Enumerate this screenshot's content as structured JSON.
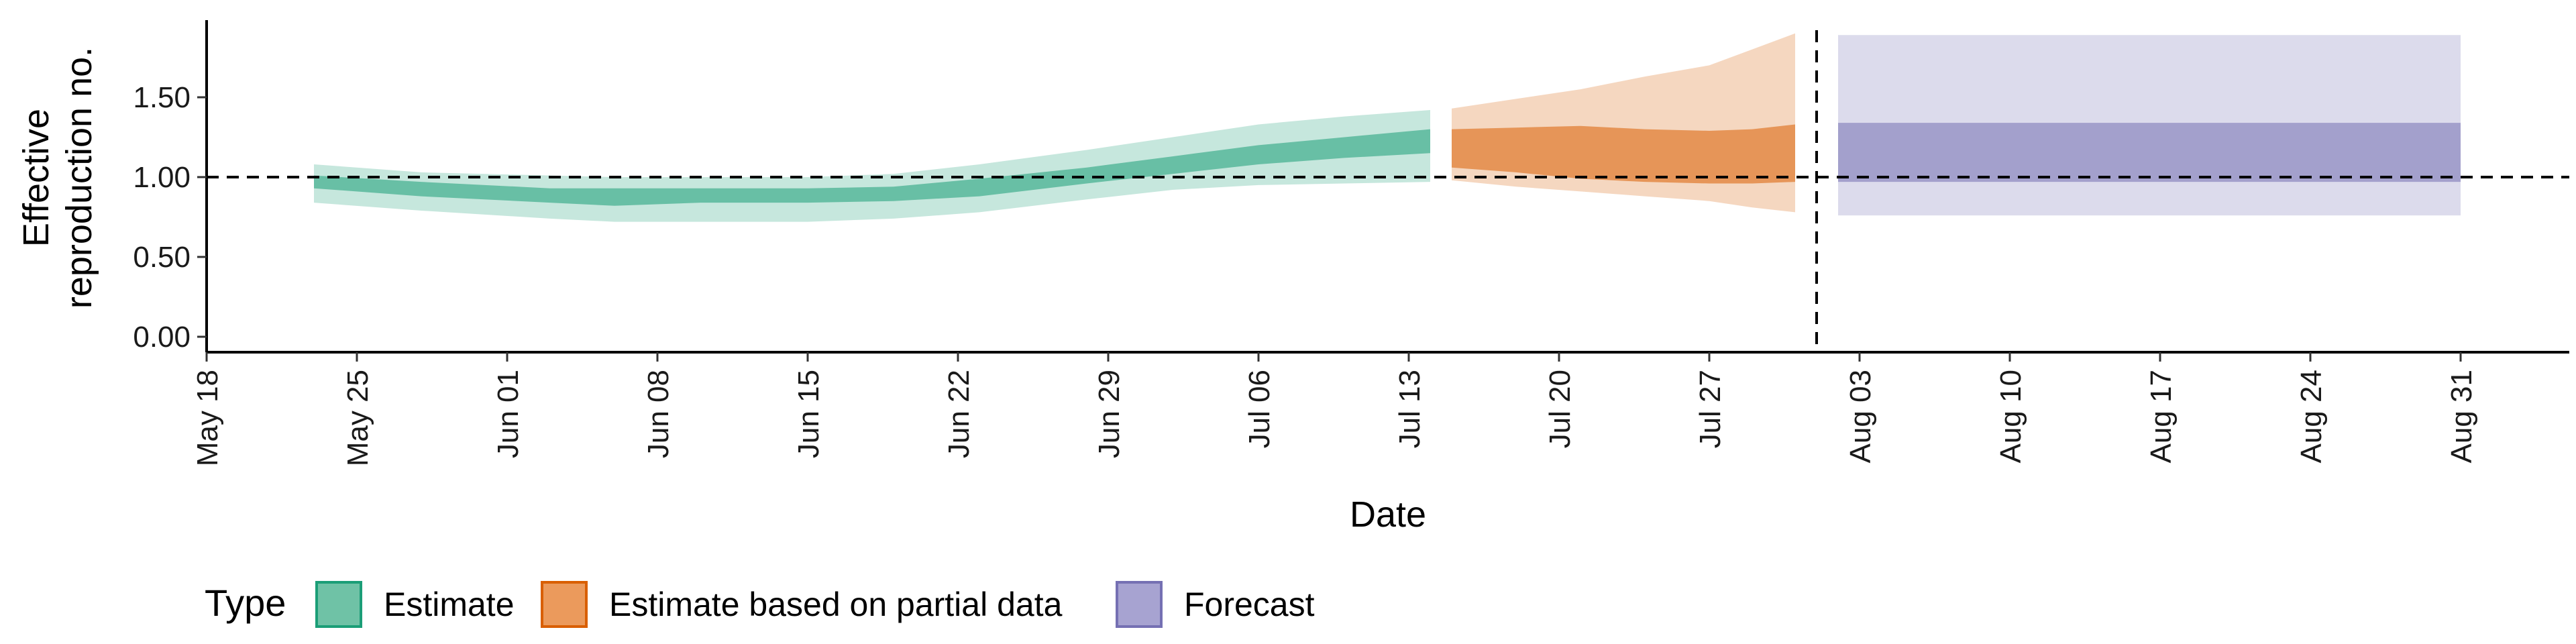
{
  "chart_data": {
    "type": "area",
    "xlabel": "Date",
    "ylabel_lines": [
      "Effective",
      "reproduction no."
    ],
    "x_ticks": [
      "May 18",
      "May 25",
      "Jun 01",
      "Jun 08",
      "Jun 15",
      "Jun 22",
      "Jun 29",
      "Jul 06",
      "Jul 13",
      "Jul 20",
      "Jul 27",
      "Aug 03",
      "Aug 10",
      "Aug 17",
      "Aug 24",
      "Aug 31"
    ],
    "y_ticks": [
      "0.00",
      "0.50",
      "1.00",
      "1.50"
    ],
    "ylim": [
      0,
      2.0
    ],
    "xlim": [
      "2020-05-18",
      "2020-09-05"
    ],
    "reference_line_y": 1.0,
    "reference_line_date": "2020-08-01",
    "series": [
      {
        "name": "Estimate",
        "color": "#1b9e77",
        "x": [
          "2020-05-23",
          "2020-05-28",
          "2020-06-03",
          "2020-06-06",
          "2020-06-10",
          "2020-06-15",
          "2020-06-19",
          "2020-06-23",
          "2020-06-28",
          "2020-07-02",
          "2020-07-06",
          "2020-07-10",
          "2020-07-14"
        ],
        "lower_90": [
          0.84,
          0.79,
          0.74,
          0.72,
          0.72,
          0.72,
          0.74,
          0.78,
          0.86,
          0.92,
          0.95,
          0.96,
          0.97
        ],
        "lower_50": [
          0.93,
          0.88,
          0.84,
          0.82,
          0.84,
          0.84,
          0.85,
          0.88,
          0.96,
          1.02,
          1.08,
          1.12,
          1.15
        ],
        "upper_50": [
          1.01,
          0.97,
          0.93,
          0.93,
          0.93,
          0.93,
          0.94,
          0.99,
          1.06,
          1.13,
          1.2,
          1.25,
          1.3
        ],
        "upper_90": [
          1.08,
          1.03,
          1.01,
          1.0,
          1.0,
          1.0,
          1.02,
          1.08,
          1.17,
          1.25,
          1.33,
          1.38,
          1.42
        ]
      },
      {
        "name": "Estimate based on partial data",
        "color": "#d95f02",
        "x": [
          "2020-07-15",
          "2020-07-18",
          "2020-07-21",
          "2020-07-24",
          "2020-07-27",
          "2020-07-29",
          "2020-07-31"
        ],
        "lower_90": [
          0.98,
          0.94,
          0.91,
          0.88,
          0.85,
          0.81,
          0.78
        ],
        "lower_50": [
          1.06,
          1.03,
          0.99,
          0.97,
          0.96,
          0.96,
          0.97
        ],
        "upper_50": [
          1.3,
          1.31,
          1.32,
          1.3,
          1.29,
          1.3,
          1.33
        ],
        "upper_90": [
          1.43,
          1.49,
          1.55,
          1.63,
          1.7,
          1.8,
          1.9
        ]
      },
      {
        "name": "Forecast",
        "color": "#7570b3",
        "x": [
          "2020-08-02",
          "2020-08-31"
        ],
        "lower_90": [
          0.76,
          0.76
        ],
        "lower_50": [
          0.97,
          0.97
        ],
        "upper_50": [
          1.34,
          1.34
        ],
        "upper_90": [
          1.89,
          1.89
        ]
      }
    ],
    "legend": {
      "title": "Type",
      "position": "bottom-left",
      "items": [
        {
          "label": "Estimate",
          "fill": "#6fc2a6",
          "stroke": "#1b9e77"
        },
        {
          "label": "Estimate based on partial data",
          "fill": "#eb9a5c",
          "stroke": "#d95f02"
        },
        {
          "label": "Forecast",
          "fill": "#a7a3d1",
          "stroke": "#7570b3"
        }
      ]
    }
  }
}
